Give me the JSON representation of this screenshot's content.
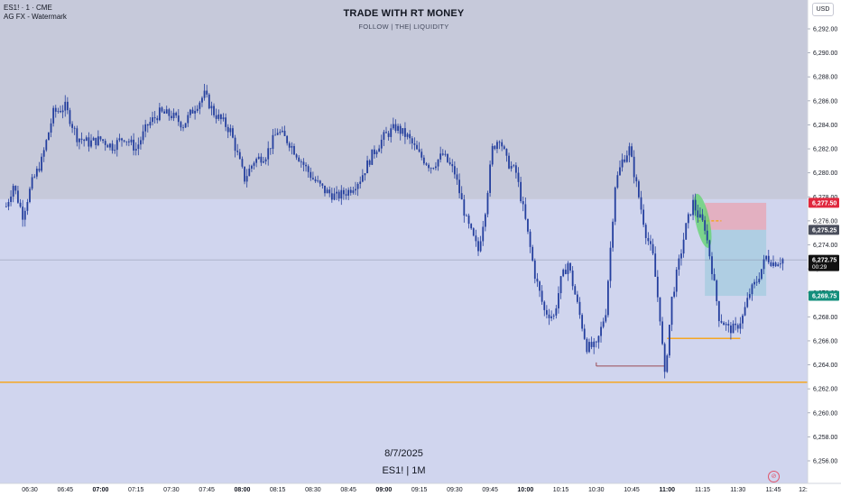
{
  "header": {
    "symbol_line": "ES1! · 1 · CME",
    "watermark_line": "AG FX - Watermark",
    "brand_title": "TRADE WITH RT MONEY",
    "brand_sub": "FOLLOW  |  THE|  LIQUIDITY",
    "date_text": "8/7/2025",
    "timeframe_text": "ES1! | 1M",
    "currency": "USD"
  },
  "colors": {
    "upper_zone": "#c6c9da",
    "lower_zone": "#d0d5ee",
    "candle": "#243f9e",
    "orange_line": "#f5a623",
    "stop_zone": "#e6a9b8",
    "target_zone": "#a9cde0",
    "stop_label": "#e0283e",
    "target_label": "#138f7c",
    "highlight": "#5fd36b",
    "dark_red_line": "#9a4b55"
  },
  "chart_data": {
    "type": "candlestick",
    "ylim": [
      6255,
      6294
    ],
    "y_ticks": [
      "6,256.00",
      "6,258.00",
      "6,260.00",
      "6,262.00",
      "6,264.00",
      "6,266.00",
      "6,268.00",
      "6,270.00",
      "6,272.00",
      "6,274.00",
      "6,276.00",
      "6,278.00",
      "6,280.00",
      "6,282.00",
      "6,284.00",
      "6,286.00",
      "6,288.00",
      "6,290.00",
      "6,292.00"
    ],
    "x_ticks": [
      "06:30",
      "06:45",
      "07:00",
      "07:15",
      "07:30",
      "07:45",
      "08:00",
      "08:15",
      "08:30",
      "08:45",
      "09:00",
      "09:15",
      "09:30",
      "09:45",
      "10:00",
      "10:15",
      "10:30",
      "10:45",
      "11:00",
      "11:15",
      "11:30",
      "11:45",
      "12:"
    ],
    "bold_ticks": [
      "07:00",
      "08:00",
      "09:00",
      "10:00",
      "11:00"
    ],
    "x_start": "06:20",
    "x_end": "11:49",
    "path": [
      [
        "06:20",
        6277.2
      ],
      [
        "06:23",
        6279.0
      ],
      [
        "06:27",
        6276.5
      ],
      [
        "06:31",
        6279.2
      ],
      [
        "06:35",
        6281.0
      ],
      [
        "06:40",
        6285.0
      ],
      [
        "06:45",
        6285.5
      ],
      [
        "06:50",
        6283.0
      ],
      [
        "06:55",
        6282.5
      ],
      [
        "07:00",
        6282.8
      ],
      [
        "07:05",
        6282.2
      ],
      [
        "07:10",
        6283.0
      ],
      [
        "07:15",
        6282.0
      ],
      [
        "07:20",
        6284.0
      ],
      [
        "07:25",
        6285.0
      ],
      [
        "07:30",
        6284.8
      ],
      [
        "07:35",
        6284.0
      ],
      [
        "07:40",
        6285.5
      ],
      [
        "07:44",
        6286.5
      ],
      [
        "07:48",
        6285.0
      ],
      [
        "07:52",
        6284.2
      ],
      [
        "07:55",
        6283.5
      ],
      [
        "07:58",
        6281.5
      ],
      [
        "08:01",
        6279.5
      ],
      [
        "08:05",
        6281.0
      ],
      [
        "08:10",
        6281.5
      ],
      [
        "08:15",
        6283.5
      ],
      [
        "08:20",
        6282.5
      ],
      [
        "08:25",
        6281.0
      ],
      [
        "08:30",
        6279.5
      ],
      [
        "08:35",
        6278.5
      ],
      [
        "08:40",
        6278.0
      ],
      [
        "08:45",
        6278.5
      ],
      [
        "08:50",
        6279.5
      ],
      [
        "08:55",
        6281.5
      ],
      [
        "09:00",
        6283.0
      ],
      [
        "09:05",
        6283.8
      ],
      [
        "09:10",
        6283.0
      ],
      [
        "09:15",
        6281.5
      ],
      [
        "09:20",
        6280.5
      ],
      [
        "09:25",
        6281.5
      ],
      [
        "09:30",
        6280.0
      ],
      [
        "09:35",
        6276.0
      ],
      [
        "09:40",
        6273.5
      ],
      [
        "09:43",
        6277.0
      ],
      [
        "09:46",
        6282.0
      ],
      [
        "09:49",
        6283.0
      ],
      [
        "09:52",
        6281.0
      ],
      [
        "09:56",
        6280.0
      ],
      [
        "10:00",
        6276.0
      ],
      [
        "10:04",
        6271.5
      ],
      [
        "10:08",
        6268.5
      ],
      [
        "10:12",
        6268.0
      ],
      [
        "10:15",
        6271.0
      ],
      [
        "10:18",
        6272.5
      ],
      [
        "10:22",
        6269.0
      ],
      [
        "10:26",
        6265.5
      ],
      [
        "10:30",
        6265.5
      ],
      [
        "10:34",
        6268.5
      ],
      [
        "10:38",
        6279.0
      ],
      [
        "10:41",
        6281.0
      ],
      [
        "10:44",
        6282.0
      ],
      [
        "10:48",
        6278.0
      ],
      [
        "10:51",
        6275.0
      ],
      [
        "10:54",
        6273.0
      ],
      [
        "10:57",
        6268.0
      ],
      [
        "10:59",
        6263.0
      ],
      [
        "11:02",
        6269.5
      ],
      [
        "11:05",
        6272.5
      ],
      [
        "11:08",
        6275.5
      ],
      [
        "11:11",
        6277.5
      ],
      [
        "11:13",
        6276.5
      ],
      [
        "11:16",
        6275.5
      ],
      [
        "11:19",
        6272.0
      ],
      [
        "11:22",
        6268.0
      ],
      [
        "11:26",
        6267.0
      ],
      [
        "11:29",
        6267.0
      ],
      [
        "11:32",
        6268.0
      ],
      [
        "11:35",
        6270.0
      ],
      [
        "11:38",
        6271.0
      ],
      [
        "11:42",
        6273.0
      ],
      [
        "11:45",
        6272.5
      ],
      [
        "11:49",
        6272.8
      ]
    ],
    "upper_zone_bottom": 6277.8,
    "horizontal_lines": [
      {
        "name": "orange-level-line",
        "price": 6262.55
      },
      {
        "name": "orange-short-line",
        "price": 6266.2,
        "from": "11:00",
        "to": "11:31"
      },
      {
        "name": "orange-entry-line",
        "price": 6276.0,
        "from": "11:13",
        "to": "11:23"
      },
      {
        "name": "red-low-line",
        "price": 6263.9,
        "from": "10:30",
        "to": "10:59"
      },
      {
        "name": "current-price-line",
        "price": 6272.75
      }
    ],
    "position": {
      "from": "11:16",
      "to": "11:42",
      "stop": 6277.5,
      "entry": 6275.25,
      "target": 6269.75
    },
    "highlight": {
      "from": "11:12",
      "to": "11:18",
      "top": 6278.3,
      "bottom": 6273.7
    },
    "price_labels": {
      "stop": "6,277.50",
      "entry": "6,275.25",
      "current": "6,272.75",
      "countdown": "00:29",
      "target": "6,269.75"
    }
  }
}
